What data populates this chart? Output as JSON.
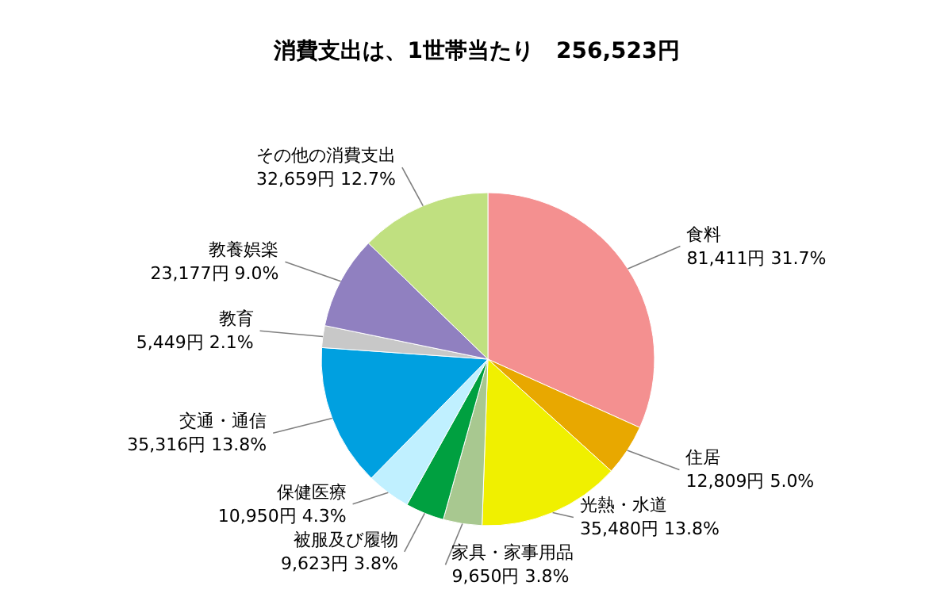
{
  "chart_data": {
    "type": "pie",
    "title": "消費支出は、1世帯当たり　256,523円",
    "categories": [
      "食料",
      "住居",
      "光熱・水道",
      "家具・家事用品",
      "被服及び履物",
      "保健医療",
      "交通・通信",
      "教育",
      "教養娯楽",
      "その他の消費支出"
    ],
    "values": [
      81411,
      12809,
      35480,
      9650,
      9623,
      10950,
      35316,
      5449,
      23177,
      32659
    ],
    "value_labels": [
      "81,411円 31.7%",
      "12,809円 5.0%",
      "35,480円 13.8%",
      "9,650円 3.8%",
      "9,623円 3.8%",
      "10,950円 4.3%",
      "35,316円 13.8%",
      "5,449円 2.1%",
      "23,177円 9.0%",
      "32,659円 12.7%"
    ],
    "colors": [
      "#f49090",
      "#e8a800",
      "#f0f000",
      "#a8c890",
      "#00a040",
      "#c0f0ff",
      "#00a0e0",
      "#c8c8c8",
      "#9080c0",
      "#c0e080"
    ]
  }
}
